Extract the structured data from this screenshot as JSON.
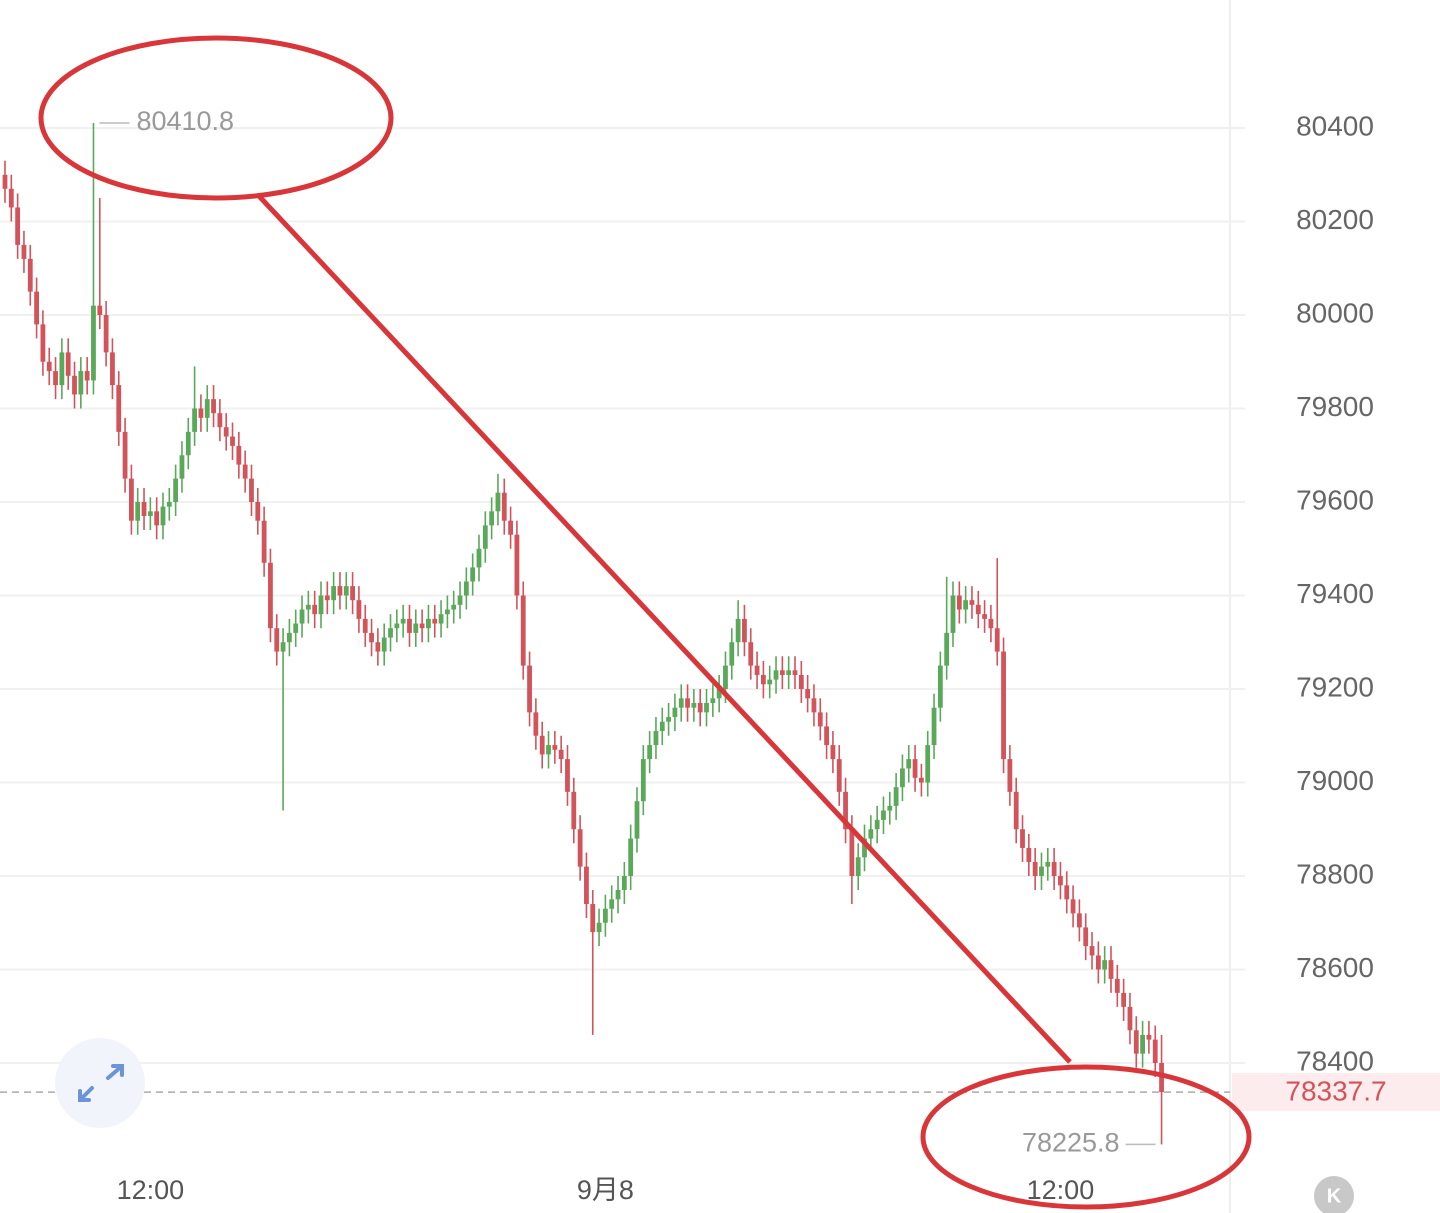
{
  "chart_data": {
    "type": "candlestick",
    "xlim": [
      -0.79,
      193.83
    ],
    "xticks": [
      {
        "value": 23,
        "label": "12:00"
      },
      {
        "value": 95,
        "label": "9月8"
      },
      {
        "value": 167,
        "label": "12:00"
      }
    ],
    "ylim": [
      78166.8,
      80673.8
    ],
    "yticks": [
      78400,
      78600,
      78800,
      79000,
      79200,
      79400,
      79600,
      79800,
      80000,
      80200,
      80400
    ],
    "grid": true,
    "up_color": "#5aa85a",
    "down_color": "#d2535a",
    "corner_button": "K",
    "series": [
      {
        "open": [
          80300,
          80270,
          80230,
          80150,
          80120,
          80050,
          79980,
          79900,
          79880,
          79850,
          79920,
          79870,
          79830,
          79880,
          79860,
          80020,
          80000,
          79920,
          79850,
          79750,
          79650,
          79560,
          79600,
          79570,
          79580,
          79550,
          79590,
          79600,
          79650,
          79700,
          79750,
          79800,
          79780,
          79820,
          79790,
          79760,
          79740,
          79720,
          79680,
          79650,
          79600,
          79560,
          79470,
          79330,
          79280,
          79300,
          79320,
          79340,
          79370,
          79380,
          79360,
          79400,
          79390,
          79420,
          79400,
          79420,
          79390,
          79350,
          79320,
          79300,
          79280,
          79310,
          79330,
          79340,
          79350,
          79320,
          79340,
          79330,
          79350,
          79340,
          79360,
          79370,
          79380,
          79400,
          79430,
          79460,
          79500,
          79550,
          79580,
          79620,
          79560,
          79530,
          79400,
          79250,
          79150,
          79100,
          79060,
          79080,
          79070,
          79050,
          78980,
          78900,
          78820,
          78740,
          78680,
          78700,
          78730,
          78750,
          78770,
          78800,
          78880,
          78960,
          79050,
          79080,
          79110,
          79130,
          79140,
          79160,
          79180,
          79160,
          79170,
          79150,
          79170,
          79180,
          79200,
          79250,
          79300,
          79350,
          79300,
          79250,
          79230,
          79210,
          79220,
          79240,
          79230,
          79240,
          79230,
          79200,
          79180,
          79150,
          79120,
          79080,
          79050,
          78980,
          78900,
          78800,
          78840,
          78880,
          78900,
          78920,
          78940,
          78950,
          78990,
          79030,
          79050,
          79010,
          79000,
          79080,
          79160,
          79250,
          79320,
          79400,
          79370,
          79390,
          79380,
          79360,
          79350,
          79330,
          79280,
          79050,
          78980,
          78900,
          78860,
          78830,
          78800,
          78820,
          78830,
          78800,
          78780,
          78750,
          78720,
          78690,
          78650,
          78630,
          78600,
          78620,
          78580,
          78550,
          78520,
          78470,
          78420,
          78460,
          78450,
          78400
        ],
        "high": [
          80330,
          80300,
          80260,
          80180,
          80150,
          80080,
          80010,
          79930,
          79910,
          79950,
          79950,
          79900,
          79910,
          79910,
          80410.8,
          80250,
          80030,
          79950,
          79880,
          79780,
          79680,
          79630,
          79630,
          79610,
          79610,
          79620,
          79630,
          79680,
          79730,
          79780,
          79890,
          79830,
          79850,
          79850,
          79820,
          79790,
          79770,
          79750,
          79710,
          79680,
          79630,
          79590,
          79500,
          79360,
          79330,
          79350,
          79370,
          79400,
          79410,
          79410,
          79430,
          79430,
          79450,
          79450,
          79450,
          79450,
          79420,
          79380,
          79350,
          79330,
          79340,
          79360,
          79370,
          79380,
          79380,
          79370,
          79370,
          79380,
          79380,
          79390,
          79400,
          79410,
          79430,
          79460,
          79490,
          79530,
          79580,
          79610,
          79660,
          79650,
          79590,
          79560,
          79430,
          79280,
          79180,
          79130,
          79110,
          79110,
          79100,
          79080,
          79010,
          78930,
          78850,
          78770,
          78730,
          78760,
          78780,
          78800,
          78830,
          78910,
          78990,
          79080,
          79110,
          79140,
          79160,
          79170,
          79190,
          79210,
          79210,
          79200,
          79200,
          79200,
          79210,
          79230,
          79280,
          79330,
          79390,
          79380,
          79330,
          79280,
          79260,
          79250,
          79270,
          79270,
          79270,
          79270,
          79260,
          79230,
          79210,
          79180,
          79150,
          79110,
          79080,
          79010,
          78930,
          78870,
          78910,
          78930,
          78950,
          78970,
          78980,
          79020,
          79060,
          79080,
          79080,
          79040,
          79110,
          79190,
          79280,
          79440,
          79430,
          79430,
          79420,
          79420,
          79410,
          79390,
          79380,
          79480,
          79310,
          79080,
          79010,
          78930,
          78890,
          78860,
          78850,
          78860,
          78860,
          78830,
          78810,
          78780,
          78750,
          78720,
          78680,
          78660,
          78650,
          78650,
          78610,
          78580,
          78550,
          78500,
          78490,
          78490,
          78480,
          78460
        ],
        "low": [
          80240,
          80200,
          80120,
          80090,
          80020,
          79950,
          79870,
          79850,
          79820,
          79820,
          79840,
          79800,
          79800,
          79830,
          79830,
          79970,
          79890,
          79820,
          79720,
          79620,
          79530,
          79530,
          79540,
          79540,
          79520,
          79520,
          79560,
          79570,
          79620,
          79670,
          79720,
          79750,
          79750,
          79760,
          79730,
          79710,
          79690,
          79650,
          79620,
          79570,
          79530,
          79440,
          79300,
          79250,
          78940,
          79270,
          79290,
          79310,
          79340,
          79330,
          79330,
          79360,
          79360,
          79370,
          79370,
          79360,
          79320,
          79290,
          79270,
          79250,
          79250,
          79280,
          79300,
          79310,
          79290,
          79290,
          79300,
          79300,
          79310,
          79310,
          79330,
          79340,
          79350,
          79370,
          79400,
          79430,
          79470,
          79520,
          79550,
          79530,
          79500,
          79370,
          79220,
          79120,
          79070,
          79030,
          79030,
          79040,
          79020,
          78950,
          78870,
          78790,
          78710,
          78460,
          78650,
          78670,
          78700,
          78720,
          78740,
          78770,
          78850,
          78930,
          79020,
          79050,
          79080,
          79100,
          79110,
          79130,
          79130,
          79130,
          79120,
          79120,
          79140,
          79150,
          79170,
          79220,
          79270,
          79270,
          79220,
          79200,
          79180,
          79180,
          79190,
          79200,
          79200,
          79200,
          79170,
          79150,
          79120,
          79090,
          79050,
          79020,
          78950,
          78870,
          78740,
          78770,
          78810,
          78850,
          78870,
          78890,
          78910,
          78920,
          78960,
          79000,
          78980,
          78970,
          78970,
          79050,
          79130,
          79220,
          79290,
          79340,
          79340,
          79350,
          79330,
          79320,
          79300,
          79250,
          79020,
          78950,
          78870,
          78830,
          78800,
          78770,
          78770,
          78790,
          78770,
          78750,
          78720,
          78690,
          78660,
          78620,
          78600,
          78570,
          78570,
          78550,
          78520,
          78490,
          78440,
          78390,
          78390,
          78420,
          78370,
          78225.8
        ],
        "close": [
          80270,
          80230,
          80150,
          80120,
          80050,
          79980,
          79900,
          79880,
          79850,
          79920,
          79870,
          79830,
          79880,
          79860,
          80020,
          80000,
          79920,
          79850,
          79750,
          79650,
          79560,
          79600,
          79570,
          79580,
          79550,
          79590,
          79600,
          79650,
          79700,
          79750,
          79800,
          79780,
          79820,
          79790,
          79760,
          79740,
          79720,
          79680,
          79650,
          79600,
          79560,
          79470,
          79330,
          79280,
          79300,
          79320,
          79340,
          79370,
          79380,
          79360,
          79400,
          79390,
          79420,
          79400,
          79420,
          79390,
          79350,
          79320,
          79300,
          79280,
          79310,
          79330,
          79340,
          79350,
          79320,
          79340,
          79330,
          79350,
          79340,
          79360,
          79370,
          79380,
          79400,
          79430,
          79460,
          79500,
          79550,
          79580,
          79620,
          79560,
          79530,
          79400,
          79250,
          79150,
          79100,
          79060,
          79080,
          79070,
          79050,
          78980,
          78900,
          78820,
          78740,
          78680,
          78700,
          78730,
          78750,
          78770,
          78800,
          78880,
          78960,
          79050,
          79080,
          79110,
          79130,
          79140,
          79160,
          79180,
          79160,
          79170,
          79150,
          79170,
          79180,
          79200,
          79250,
          79300,
          79350,
          79300,
          79250,
          79230,
          79210,
          79220,
          79240,
          79230,
          79240,
          79230,
          79200,
          79180,
          79150,
          79120,
          79080,
          79050,
          78980,
          78900,
          78800,
          78840,
          78880,
          78900,
          78920,
          78940,
          78950,
          78990,
          79030,
          79050,
          79010,
          79000,
          79080,
          79160,
          79250,
          79320,
          79400,
          79370,
          79390,
          79380,
          79360,
          79350,
          79330,
          79280,
          79050,
          78980,
          78900,
          78860,
          78830,
          78800,
          78820,
          78830,
          78800,
          78780,
          78750,
          78720,
          78690,
          78650,
          78630,
          78600,
          78620,
          78580,
          78550,
          78520,
          78470,
          78420,
          78460,
          78450,
          78400,
          78337.7
        ]
      }
    ]
  }
}
